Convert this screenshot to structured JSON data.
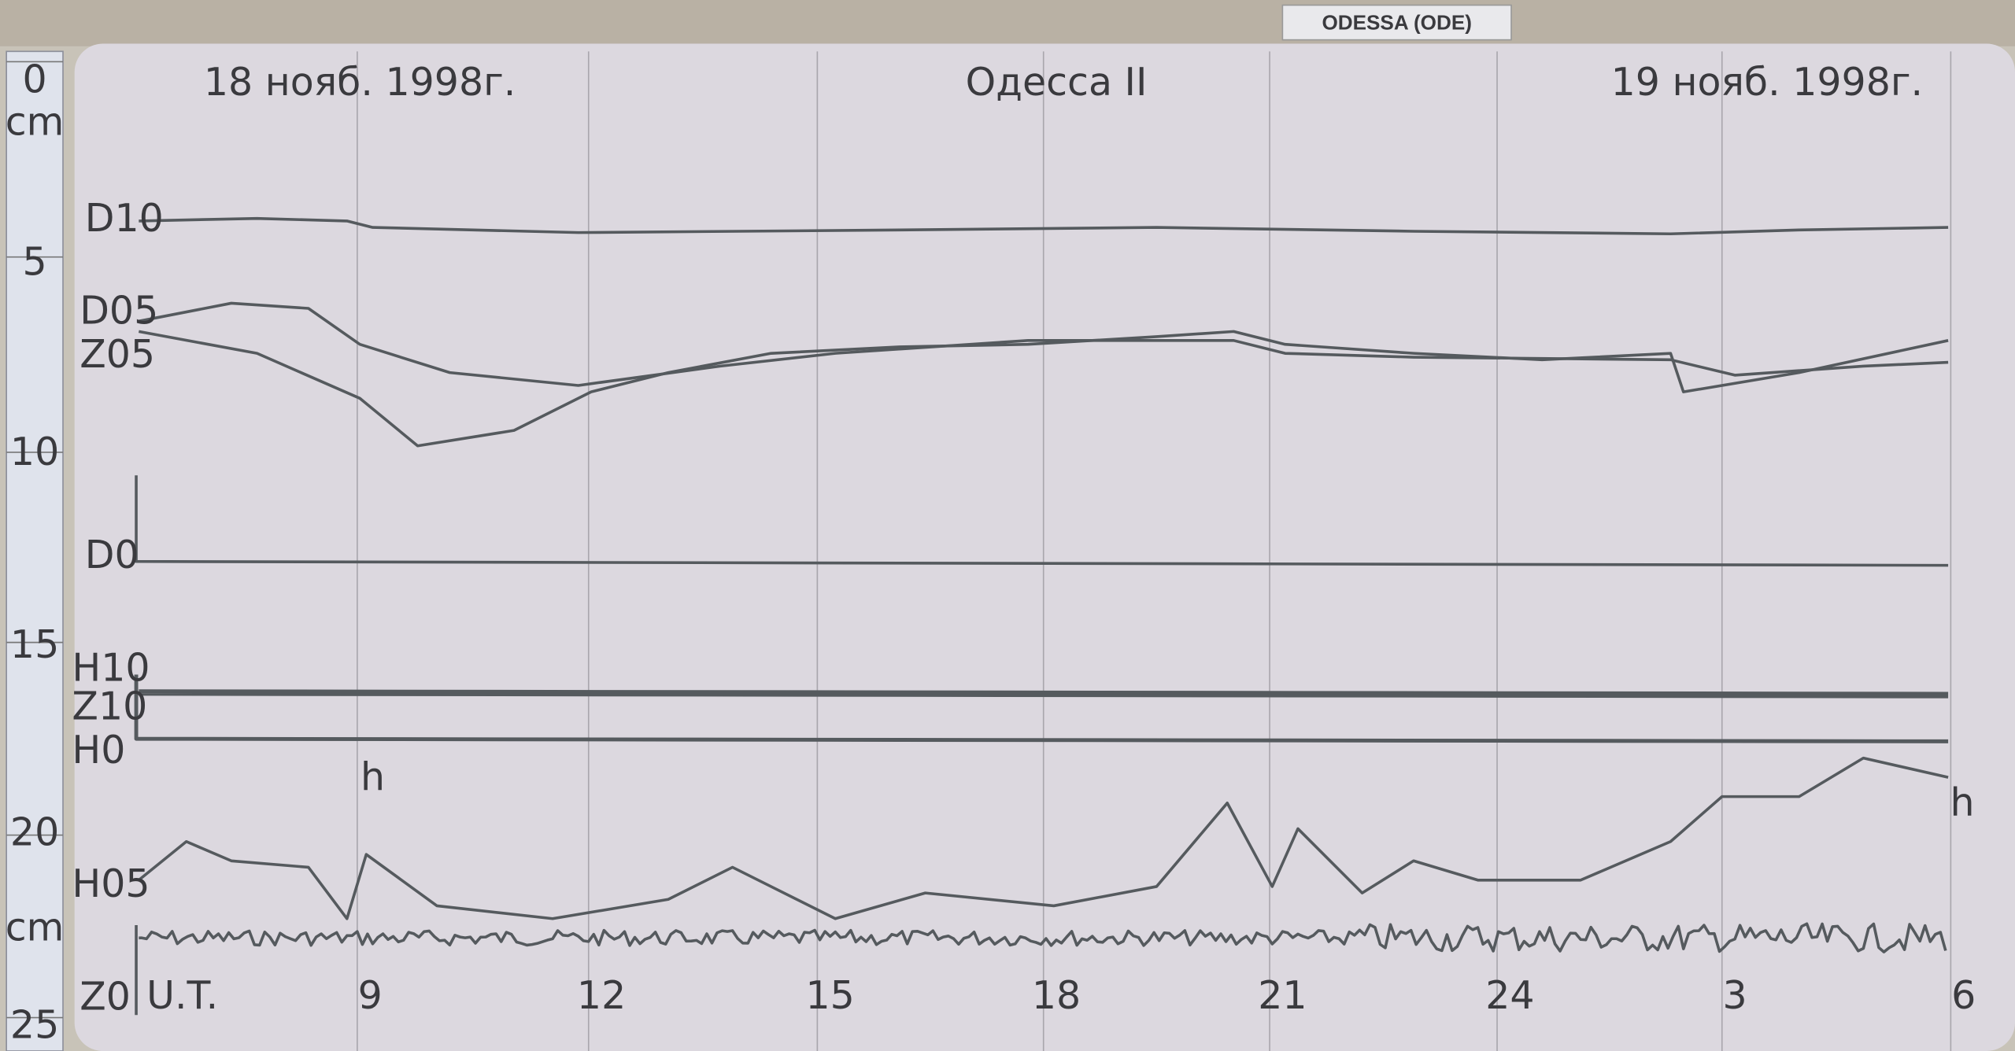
{
  "header": {
    "station_tag": "ODESSA (ODE)",
    "date_start": "18 нояб. 1998г.",
    "title": "Одесса II",
    "date_end": "19 нояб. 1998г."
  },
  "ruler": {
    "labels": [
      "0",
      "cm",
      "5",
      "10",
      "15",
      "20",
      "cm",
      "25"
    ]
  },
  "traces": {
    "labels": [
      "D10",
      "D05",
      "Z05",
      "D0",
      "H10",
      "Z10",
      "H0",
      "H05",
      "Z0"
    ],
    "scale_marks": [
      "h",
      "h"
    ]
  },
  "time_axis": {
    "unit": "U.T.",
    "hours": [
      "9",
      "12",
      "15",
      "18",
      "21",
      "24",
      "3",
      "6"
    ]
  }
}
